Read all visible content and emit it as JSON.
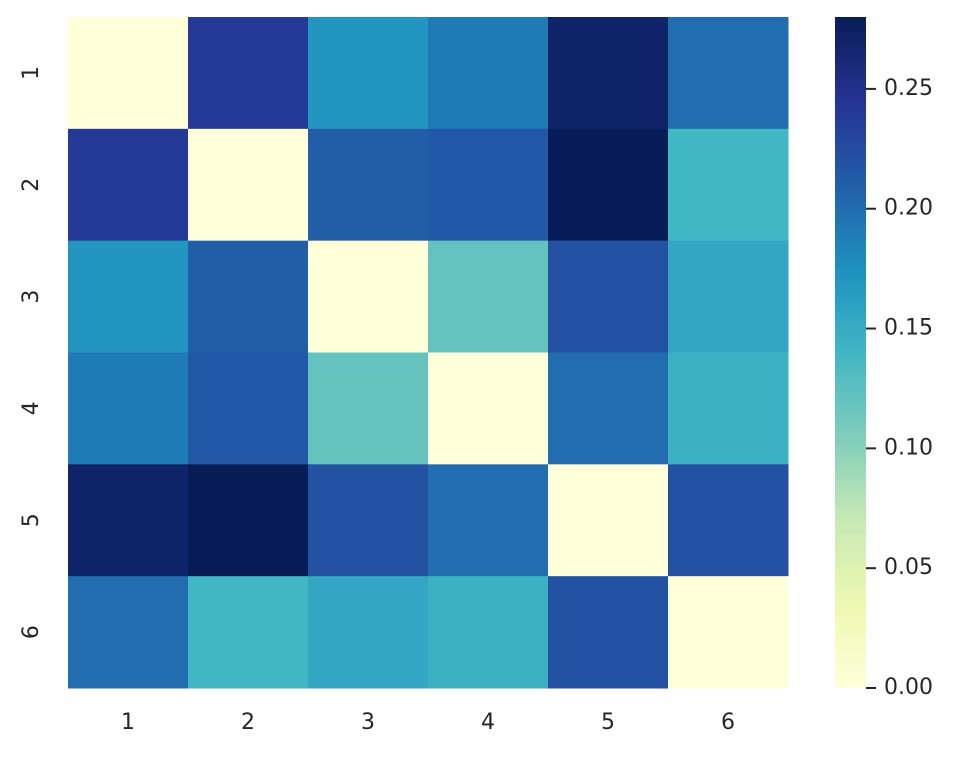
{
  "chart_data": {
    "type": "heatmap",
    "x_categories": [
      "1",
      "2",
      "3",
      "4",
      "5",
      "6"
    ],
    "y_categories": [
      "1",
      "2",
      "3",
      "4",
      "5",
      "6"
    ],
    "values": [
      [
        0,
        0.24,
        0.17,
        0.19,
        0.27,
        0.2
      ],
      [
        0.24,
        0,
        0.21,
        0.215,
        0.28,
        0.14
      ],
      [
        0.17,
        0.21,
        0,
        0.12,
        0.22,
        0.155
      ],
      [
        0.19,
        0.215,
        0.12,
        0,
        0.2,
        0.145
      ],
      [
        0.27,
        0.28,
        0.22,
        0.2,
        0,
        0.22
      ],
      [
        0.2,
        0.14,
        0.155,
        0.145,
        0.22,
        0
      ]
    ],
    "colormap": [
      "#ffffd9",
      "#edf8b1",
      "#c7e9b4",
      "#7fcdbb",
      "#41b6c4",
      "#1d91c0",
      "#225ea8",
      "#253494",
      "#081d58"
    ],
    "clim": [
      0,
      0.28
    ],
    "cticks": [
      {
        "value": 0,
        "label": "0.00"
      },
      0.05,
      {
        "value": 0.1,
        "label": "0.10"
      },
      0.15,
      {
        "value": 0.2,
        "label": "0.20"
      },
      0.25
    ]
  }
}
